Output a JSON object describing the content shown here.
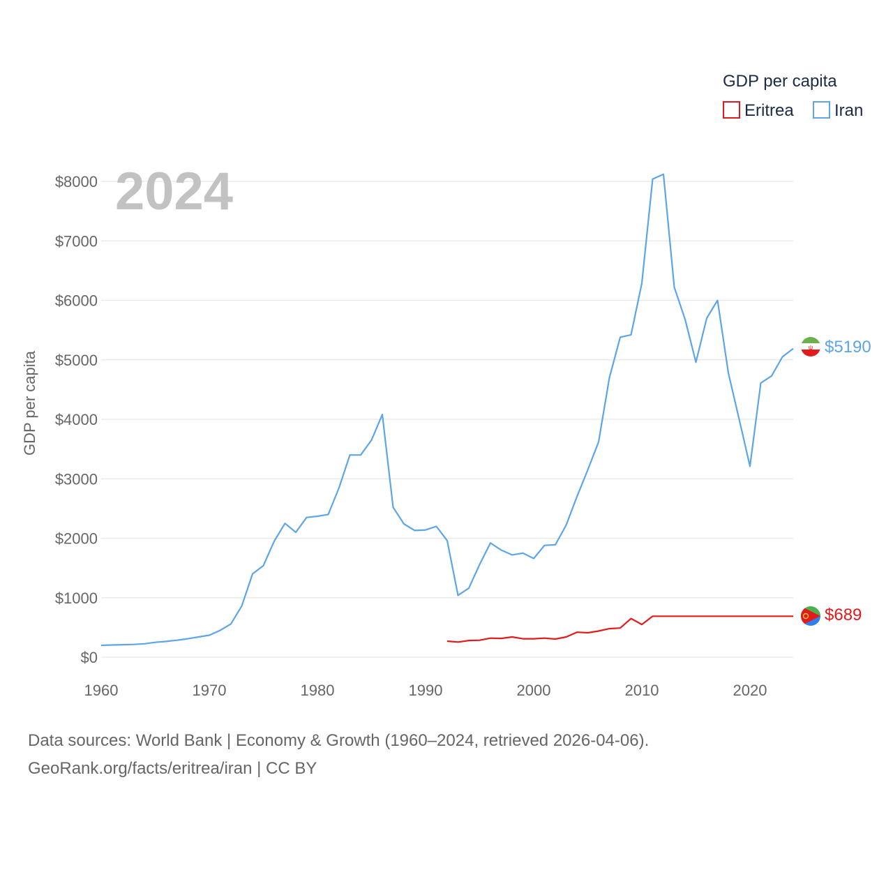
{
  "chart_data": {
    "type": "line",
    "year_label": "2024",
    "ylabel": "GDP per capita",
    "ylim": [
      0,
      8000
    ],
    "xlim": [
      1960,
      2024
    ],
    "y_ticks": [
      0,
      1000,
      2000,
      3000,
      4000,
      5000,
      6000,
      7000,
      8000
    ],
    "y_tick_labels": [
      "$0",
      "$1000",
      "$2000",
      "$3000",
      "$4000",
      "$5000",
      "$6000",
      "$7000",
      "$8000"
    ],
    "x_ticks": [
      1960,
      1970,
      1980,
      1990,
      2000,
      2010,
      2020
    ],
    "x_tick_labels": [
      "1960",
      "1970",
      "1980",
      "1990",
      "2000",
      "2010",
      "2020"
    ],
    "legend_title": "GDP per capita",
    "series": [
      {
        "name": "Eritrea",
        "color": "#e31a1c",
        "end_label": "$689",
        "x": [
          1992,
          1993,
          1994,
          1995,
          1996,
          1997,
          1998,
          1999,
          2000,
          2001,
          2002,
          2003,
          2004,
          2005,
          2006,
          2007,
          2008,
          2009,
          2010,
          2011,
          2024
        ],
        "values": [
          270,
          255,
          280,
          285,
          320,
          315,
          340,
          310,
          310,
          320,
          305,
          340,
          420,
          410,
          440,
          480,
          490,
          650,
          550,
          689,
          689
        ]
      },
      {
        "name": "Iran",
        "color": "#5da5e8",
        "end_label": "$5190",
        "x": [
          1960,
          1961,
          1962,
          1963,
          1964,
          1965,
          1966,
          1967,
          1968,
          1969,
          1970,
          1971,
          1972,
          1973,
          1974,
          1975,
          1976,
          1977,
          1978,
          1979,
          1980,
          1981,
          1982,
          1983,
          1984,
          1985,
          1986,
          1987,
          1988,
          1989,
          1990,
          1991,
          1992,
          1993,
          1994,
          1995,
          1996,
          1997,
          1998,
          1999,
          2000,
          2001,
          2002,
          2003,
          2004,
          2005,
          2006,
          2007,
          2008,
          2009,
          2010,
          2011,
          2012,
          2013,
          2014,
          2015,
          2016,
          2017,
          2018,
          2019,
          2020,
          2021,
          2022,
          2023,
          2024
        ],
        "values": [
          200,
          205,
          210,
          215,
          225,
          250,
          265,
          285,
          310,
          340,
          370,
          450,
          560,
          860,
          1400,
          1540,
          1950,
          2250,
          2100,
          2350,
          2370,
          2400,
          2850,
          3400,
          3400,
          3650,
          4080,
          2520,
          2240,
          2130,
          2140,
          2200,
          1960,
          1040,
          1160,
          1560,
          1920,
          1800,
          1720,
          1750,
          1660,
          1880,
          1890,
          2220,
          2700,
          3150,
          3620,
          4700,
          5380,
          5420,
          6290,
          8040,
          8120,
          6220,
          5680,
          4960,
          5700,
          6000,
          4780,
          4000,
          3210,
          4610,
          4730,
          5050,
          5190
        ]
      }
    ],
    "source_line1": "Data sources: World Bank | Economy & Growth (1960–2024, retrieved 2026-04-06).",
    "source_line2": "GeoRank.org/facts/eritrea/iran | CC BY"
  }
}
